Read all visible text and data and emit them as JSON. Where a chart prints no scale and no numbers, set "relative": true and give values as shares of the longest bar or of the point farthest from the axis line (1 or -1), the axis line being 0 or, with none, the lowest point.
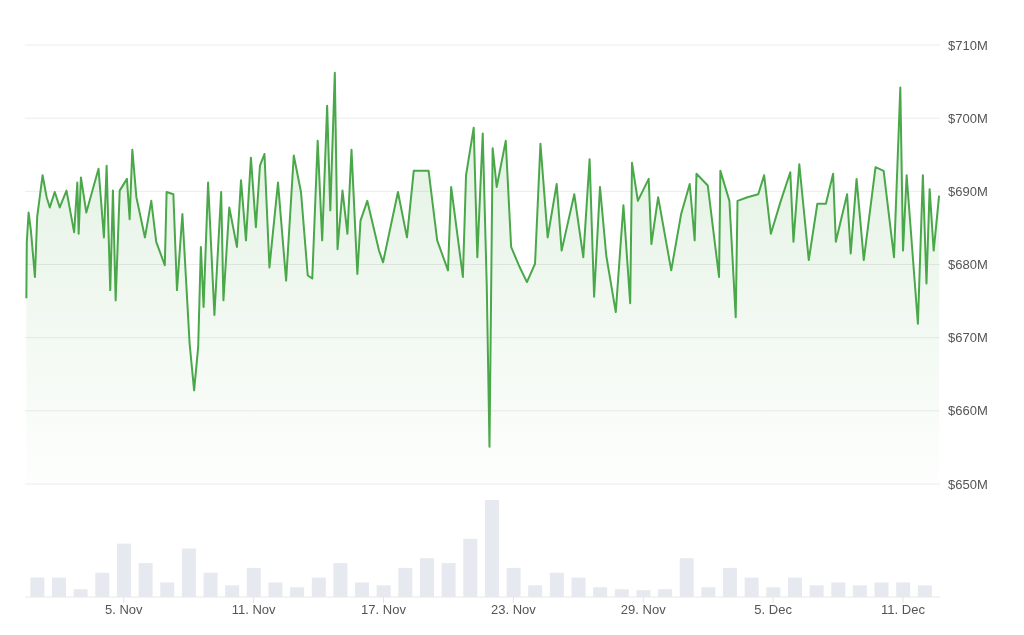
{
  "chart_data": [
    {
      "type": "area",
      "color": "#4aa84a",
      "xlim": [
        "--10-31T10:30",
        "--12-12T17:00"
      ],
      "ylim": [
        650,
        710
      ],
      "yticks": [
        {
          "value": 650,
          "label": "$650M"
        },
        {
          "value": 660,
          "label": "$660M"
        },
        {
          "value": 670,
          "label": "$670M"
        },
        {
          "value": 680,
          "label": "$680M"
        },
        {
          "value": 690,
          "label": "$690M"
        },
        {
          "value": 700,
          "label": "$700M"
        },
        {
          "value": 710,
          "label": "$710M"
        }
      ],
      "grid": "y",
      "tick_labels": "y",
      "x": [
        "--10-31T12:00",
        "--10-31T12:30",
        "--10-31T14:30",
        "--10-31T17:00",
        "--10-31T21:30",
        "--11-01T00:00",
        "--11-01T06:00",
        "--11-01T10:30",
        "--11-01T14:00",
        "--11-01T19:30",
        "--11-02T01:00",
        "--11-02T08:30",
        "--11-02T17:00",
        "--11-02T20:30",
        "--11-02T22:00",
        "--11-03T00:30",
        "--11-03T06:30",
        "--11-03T20:00",
        "--11-04T02:00",
        "--11-04T05:00",
        "--11-04T09:00",
        "--11-04T12:00",
        "--11-04T15:00",
        "--11-04T19:30",
        "--11-05T03:30",
        "--11-05T06:30",
        "--11-05T09:30",
        "--11-05T14:00",
        "--11-05T23:30",
        "--11-06T06:30",
        "--11-06T12:00",
        "--11-06T21:30",
        "--11-06T23:30",
        "--11-07T07:00",
        "--11-07T11:00",
        "--11-07T17:00",
        "--11-08T01:00",
        "--11-08T06:00",
        "--11-08T10:30",
        "--11-08T13:30",
        "--11-08T16:30",
        "--11-08T21:30",
        "--11-09T04:30",
        "--11-09T12:00",
        "--11-09T14:30",
        "--11-09T21:00",
        "--11-10T05:30",
        "--11-10T10:00",
        "--11-10T15:30",
        "--11-10T21:00",
        "--11-11T02:30",
        "--11-11T07:00",
        "--11-11T12:00",
        "--11-11T17:30",
        "--11-12T03:00",
        "--11-12T12:00",
        "--11-12T20:30",
        "--11-13T04:30",
        "--11-13T12:00",
        "--11-13T17:00",
        "--11-13T23:00",
        "--11-14T04:00",
        "--11-14T09:30",
        "--11-14T13:00",
        "--11-14T18:00",
        "--11-14T21:00",
        "--11-15T02:30",
        "--11-15T08:00",
        "--11-15T12:30",
        "--11-15T19:00",
        "--11-15T22:30",
        "--11-16T06:00",
        "--11-16T19:00",
        "--11-16T23:30",
        "--11-17T16:00",
        "--11-18T02:00",
        "--11-18T09:30",
        "--11-19T02:00",
        "--11-19T11:30",
        "--11-19T23:30",
        "--11-20T03:00",
        "--11-20T16:00",
        "--11-20T19:30",
        "--11-21T04:00",
        "--11-21T08:00",
        "--11-21T14:00",
        "--11-21T18:30",
        "--11-21T21:30",
        "--11-22T01:00",
        "--11-22T05:30",
        "--11-22T15:30",
        "--11-22T21:30",
        "--11-23T06:00",
        "--11-23T15:00",
        "--11-24T00:00",
        "--11-24T06:00",
        "--11-24T14:00",
        "--11-25T00:00",
        "--11-25T05:30",
        "--11-25T19:30",
        "--11-26T05:30",
        "--11-26T12:30",
        "--11-26T17:30",
        "--11-27T00:00",
        "--11-27T07:00",
        "--11-27T17:30",
        "--11-28T02:00",
        "--11-28T09:30",
        "--11-28T11:30",
        "--11-28T18:00",
        "--11-29T06:00",
        "--11-29T09:00",
        "--11-29T16:30",
        "--11-30T07:00",
        "--11-30T18:00",
        "--12-01T03:30",
        "--12-01T09:00",
        "--12-01T11:00",
        "--12-01T23:30",
        "--12-02T12:00",
        "--12-02T13:30",
        "--12-02T23:30",
        "--12-03T06:30",
        "--12-03T08:30",
        "--12-03T19:30",
        "--12-04T07:30",
        "--12-04T14:00",
        "--12-04T21:30",
        "--12-05T08:30",
        "--12-05T19:00",
        "--12-05T22:30",
        "--12-06T05:00",
        "--12-06T15:30",
        "--12-07T01:00",
        "--12-07T10:30",
        "--12-07T18:30",
        "--12-07T21:30",
        "--12-08T10:00",
        "--12-08T14:00",
        "--12-08T20:30",
        "--12-09T04:30",
        "--12-09T17:30",
        "--12-10T02:30",
        "--12-10T14:00",
        "--12-10T21:00",
        "--12-11T00:00",
        "--12-11T04:00",
        "--12-11T16:30",
        "--12-11T22:00",
        "--12-12T02:00",
        "--12-12T05:30",
        "--12-12T10:00",
        "--12-12T16:00"
      ],
      "values": [
        675.4,
        683.1,
        687.1,
        684.7,
        678.3,
        686.5,
        692.2,
        689.2,
        687.8,
        689.9,
        687.8,
        690.1,
        684.4,
        691.2,
        684.2,
        691.9,
        687.1,
        693.1,
        683.7,
        693.5,
        676.5,
        690.1,
        675.1,
        690.1,
        691.7,
        686.2,
        695.7,
        689.2,
        683.7,
        688.7,
        683.1,
        679.9,
        689.9,
        689.6,
        676.5,
        686.9,
        669.2,
        662.8,
        668.7,
        682.4,
        674.2,
        691.2,
        673.1,
        689.9,
        675.1,
        687.8,
        682.4,
        691.5,
        683.3,
        694.6,
        685.1,
        693.5,
        695.1,
        679.6,
        691.2,
        677.8,
        694.9,
        689.9,
        678.5,
        678.1,
        696.9,
        683.3,
        701.7,
        687.4,
        706.2,
        682.1,
        690.1,
        684.2,
        695.7,
        678.7,
        686.0,
        688.7,
        681.9,
        680.3,
        689.9,
        683.7,
        692.8,
        692.8,
        683.3,
        679.2,
        690.6,
        678.3,
        692.2,
        698.7,
        681.0,
        697.9,
        676.9,
        655.1,
        695.9,
        690.6,
        696.9,
        682.4,
        679.9,
        677.6,
        680.1,
        696.5,
        683.7,
        691.0,
        681.9,
        689.6,
        681.0,
        694.4,
        675.6,
        690.6,
        681.2,
        673.5,
        688.1,
        674.7,
        693.9,
        688.7,
        691.7,
        682.8,
        689.2,
        679.2,
        686.9,
        691.0,
        683.3,
        692.4,
        690.8,
        678.3,
        692.8,
        688.7,
        672.8,
        688.7,
        689.2,
        689.6,
        692.2,
        684.2,
        688.7,
        692.6,
        683.1,
        693.7,
        680.6,
        688.3,
        688.3,
        692.4,
        683.1,
        689.6,
        681.5,
        691.7,
        680.6,
        693.3,
        692.8,
        681.0,
        704.2,
        681.9,
        692.2,
        671.9,
        692.2,
        677.4,
        690.3,
        681.9,
        689.4
      ]
    },
    {
      "type": "bar",
      "relative": true,
      "color": "#e6e9ef",
      "xlim": [
        "--10-31T10:30",
        "--12-12T17:00"
      ],
      "xticks": [
        {
          "value": "--11-05",
          "label": "5. Nov"
        },
        {
          "value": "--11-11",
          "label": "11. Nov"
        },
        {
          "value": "--11-17",
          "label": "17. Nov"
        },
        {
          "value": "--11-23",
          "label": "23. Nov"
        },
        {
          "value": "--11-29",
          "label": "29. Nov"
        },
        {
          "value": "--12-05",
          "label": "5. Dec"
        },
        {
          "value": "--12-11",
          "label": "11. Dec"
        }
      ],
      "tick_labels": "x",
      "x": [
        "--11-01",
        "--11-02",
        "--11-03",
        "--11-04",
        "--11-05",
        "--11-06",
        "--11-07",
        "--11-08",
        "--11-09",
        "--11-10",
        "--11-11",
        "--11-12",
        "--11-13",
        "--11-14",
        "--11-15",
        "--11-16",
        "--11-17",
        "--11-18",
        "--11-19",
        "--11-20",
        "--11-21",
        "--11-22",
        "--11-23",
        "--11-24",
        "--11-25",
        "--11-26",
        "--11-27",
        "--11-28",
        "--11-29",
        "--11-30",
        "--12-01",
        "--12-02",
        "--12-03",
        "--12-04",
        "--12-05",
        "--12-06",
        "--12-07",
        "--12-08",
        "--12-09",
        "--12-10",
        "--12-11",
        "--12-12"
      ],
      "values": [
        0.2,
        0.2,
        0.08,
        0.25,
        0.55,
        0.35,
        0.15,
        0.5,
        0.25,
        0.12,
        0.3,
        0.15,
        0.1,
        0.2,
        0.35,
        0.15,
        0.12,
        0.3,
        0.4,
        0.35,
        0.6,
        1,
        0.3,
        0.12,
        0.25,
        0.2,
        0.1,
        0.08,
        0.07,
        0.08,
        0.4,
        0.1,
        0.3,
        0.2,
        0.1,
        0.2,
        0.12,
        0.15,
        0.12,
        0.15,
        0.15,
        0.12
      ]
    }
  ]
}
